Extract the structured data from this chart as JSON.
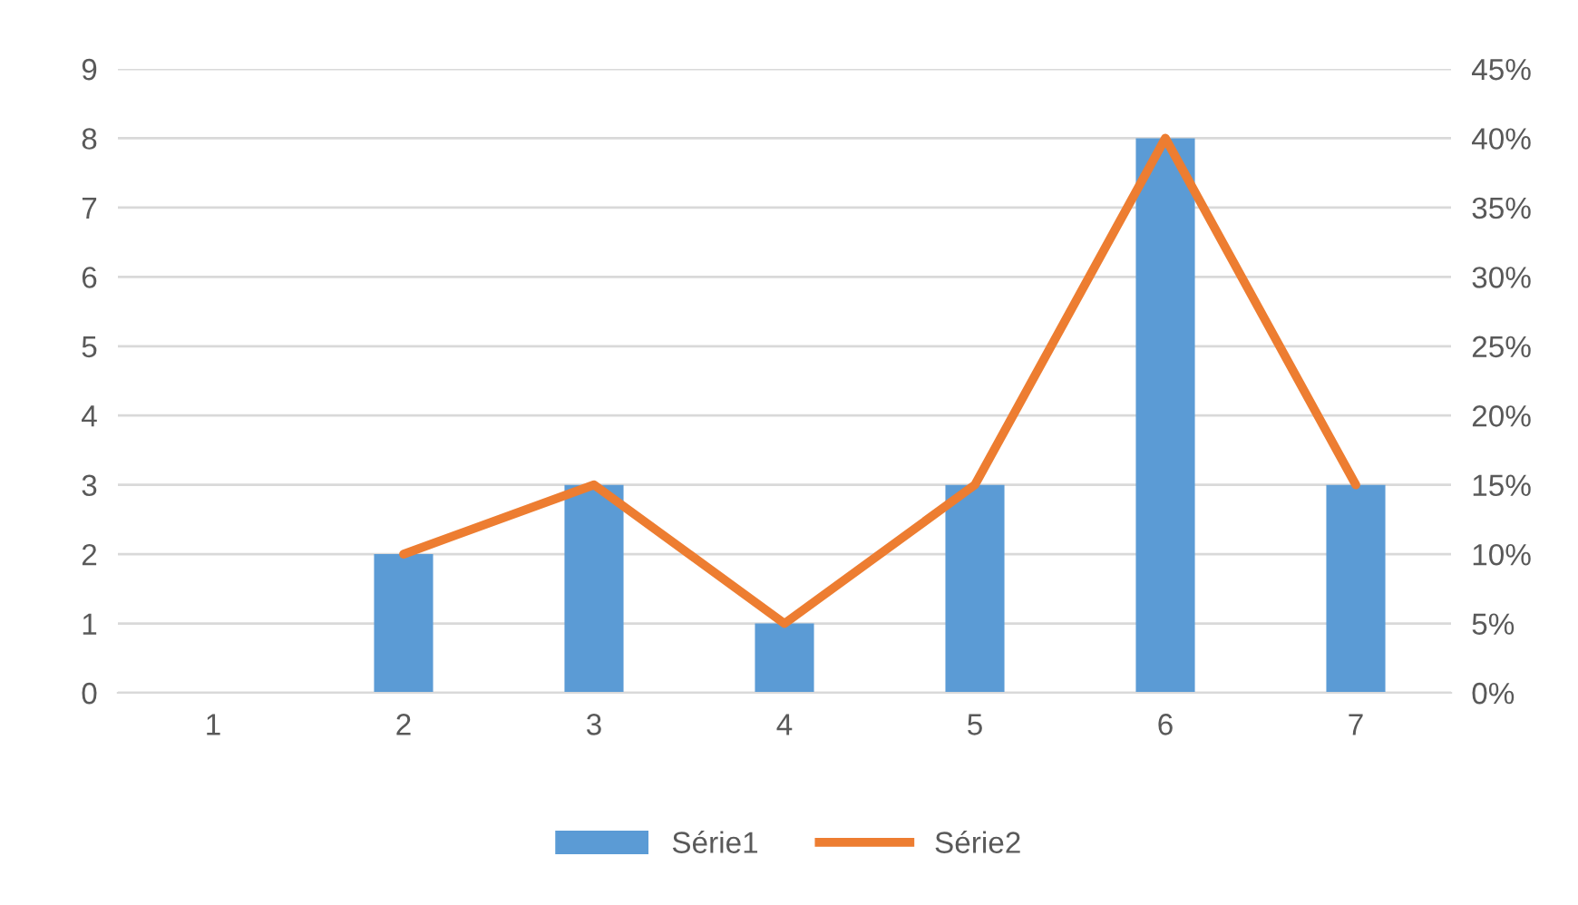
{
  "chart_data": {
    "type": "bar",
    "categories": [
      "1",
      "2",
      "3",
      "4",
      "5",
      "6",
      "7"
    ],
    "series": [
      {
        "name": "Série1",
        "color": "#5b9bd5",
        "values": [
          0,
          2,
          3,
          1,
          3,
          8,
          3
        ]
      },
      {
        "name": "Série2",
        "type": "line",
        "axis": "y2",
        "color": "#ed7d31",
        "values": [
          null,
          10,
          15,
          5,
          15,
          40,
          15
        ]
      }
    ],
    "ylim": [
      0,
      9
    ],
    "yticks": [
      0,
      1,
      2,
      3,
      4,
      5,
      6,
      7,
      8,
      9
    ],
    "y2lim": [
      0,
      45
    ],
    "y2ticks": [
      {
        "value": 0,
        "label": "0%"
      },
      {
        "value": 5,
        "label": "5%"
      },
      {
        "value": 10,
        "label": "10%"
      },
      {
        "value": 15,
        "label": "15%"
      },
      {
        "value": 20,
        "label": "20%"
      },
      {
        "value": 25,
        "label": "25%"
      },
      {
        "value": 30,
        "label": "30%"
      },
      {
        "value": 35,
        "label": "35%"
      },
      {
        "value": 40,
        "label": "40%"
      },
      {
        "value": 45,
        "label": "45%"
      }
    ],
    "grid": "y",
    "legend": "bottom"
  }
}
